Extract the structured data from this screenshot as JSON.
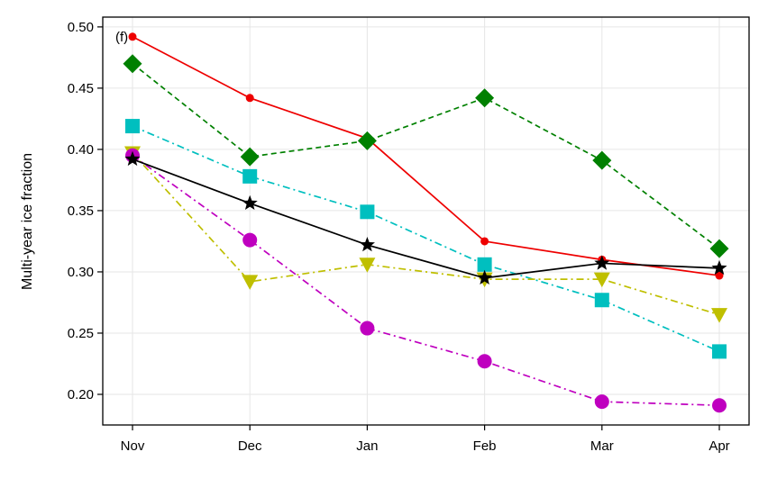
{
  "chart_data": {
    "type": "line",
    "panel_label": "(f)",
    "ylabel": "Multi-year ice fraction",
    "xlabel": "",
    "categories": [
      "Nov",
      "Dec",
      "Jan",
      "Feb",
      "Mar",
      "Apr"
    ],
    "ylim": [
      0.175,
      0.508
    ],
    "yticks": [
      0.2,
      0.25,
      0.3,
      0.35,
      0.4,
      0.45,
      0.5
    ],
    "ytick_labels": [
      "0.20",
      "0.25",
      "0.30",
      "0.35",
      "0.40",
      "0.45",
      "0.50"
    ],
    "grid": true,
    "series": [
      {
        "name": "red-circle-solid",
        "color": "#ee0000",
        "marker": "small-circle",
        "dash": "solid",
        "values": [
          0.492,
          0.442,
          0.409,
          0.325,
          0.31,
          0.297
        ]
      },
      {
        "name": "green-diamond-dashed",
        "color": "#008000",
        "marker": "diamond",
        "dash": "dashed",
        "values": [
          0.47,
          0.394,
          0.407,
          0.442,
          0.391,
          0.319
        ]
      },
      {
        "name": "cyan-square-dashdot",
        "color": "#00bfbf",
        "marker": "square",
        "dash": "dashdot",
        "values": [
          0.419,
          0.378,
          0.349,
          0.306,
          0.277,
          0.235
        ]
      },
      {
        "name": "yellow-triangle-dashdot",
        "color": "#bfbf00",
        "marker": "triangle-down",
        "dash": "dashdot",
        "values": [
          0.397,
          0.292,
          0.306,
          0.294,
          0.294,
          0.265
        ]
      },
      {
        "name": "magenta-circle-dashdot",
        "color": "#bf00bf",
        "marker": "circle",
        "dash": "dashdot",
        "values": [
          0.395,
          0.326,
          0.254,
          0.227,
          0.194,
          0.191
        ]
      },
      {
        "name": "black-star-solid",
        "color": "#000000",
        "marker": "star",
        "dash": "solid",
        "values": [
          0.392,
          0.356,
          0.322,
          0.295,
          0.307,
          0.303
        ]
      }
    ]
  }
}
